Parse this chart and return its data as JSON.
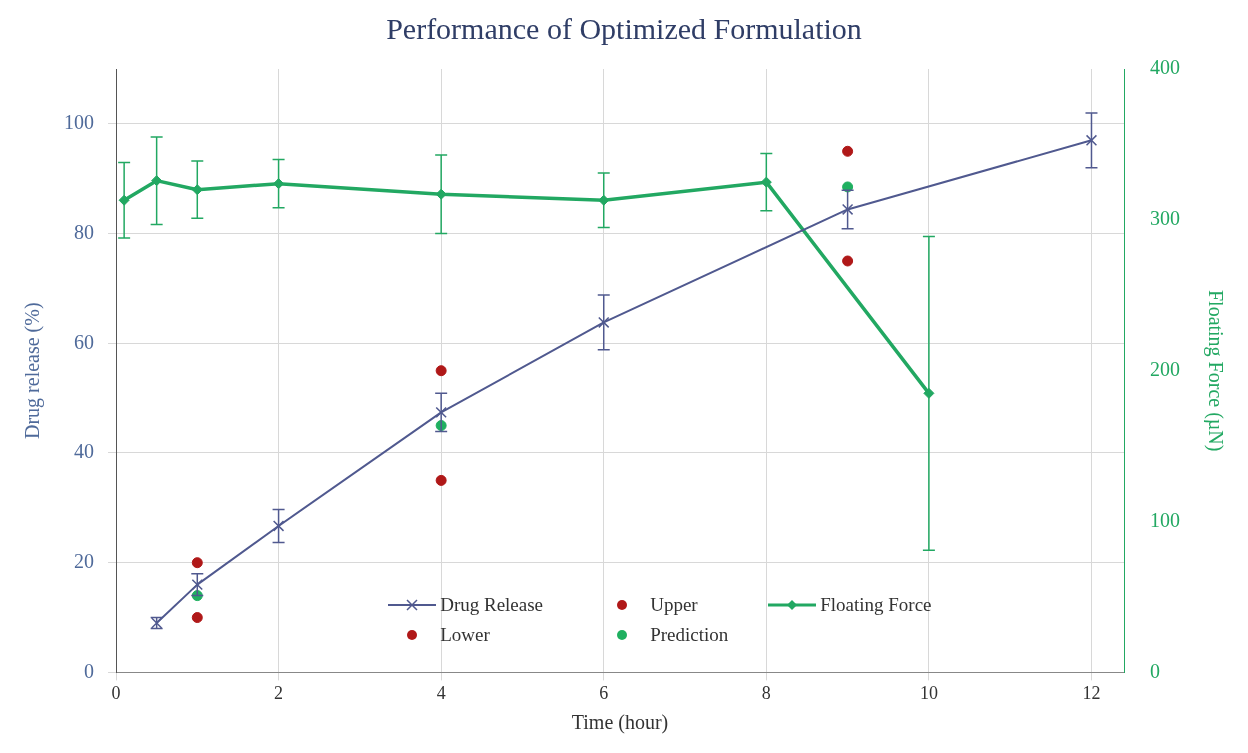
{
  "chart_data": {
    "type": "line",
    "title": "Performance of Optimized Formulation",
    "xlabel": "Time (hour)",
    "ylabel": "Drug release (%)",
    "y2label": "Floating Force (µN)",
    "xlim": [
      0,
      12.4
    ],
    "xticks": [
      0,
      2,
      4,
      6,
      8,
      10,
      12
    ],
    "ylim": [
      0,
      110
    ],
    "yticks": [
      0,
      20,
      40,
      60,
      80,
      100
    ],
    "y2lim": [
      0,
      400
    ],
    "y2ticks": [
      0,
      100,
      200,
      300,
      400
    ],
    "grid": true,
    "legend": "bottom",
    "line_style": "solid",
    "series": [
      {
        "name": "Drug Release",
        "marker": "cross",
        "color": "#50598f",
        "x": [
          0.5,
          1,
          2,
          4,
          6,
          9,
          12
        ],
        "values": [
          9,
          16,
          26.7,
          47.4,
          63.8,
          84.4,
          97
        ],
        "errors": [
          1,
          2,
          3,
          3.5,
          5,
          3.5,
          5
        ]
      },
      {
        "name": "Upper",
        "type": "scatter",
        "marker": "circle",
        "color": "#b01818",
        "x": [
          1,
          4,
          9
        ],
        "values": [
          20,
          55,
          95
        ]
      },
      {
        "name": "Floating Force",
        "marker": "diamond",
        "axis": "y2",
        "color": "#22a862",
        "x": [
          0.1,
          0.5,
          1,
          2,
          4,
          6,
          8,
          10
        ],
        "values": [
          313,
          326,
          320,
          324,
          317,
          313,
          325,
          185
        ],
        "errors": [
          25,
          29,
          19,
          16,
          26,
          18,
          19,
          104
        ]
      },
      {
        "name": "Lower",
        "type": "scatter",
        "marker": "circle",
        "color": "#b01818",
        "x": [
          1,
          4,
          9
        ],
        "values": [
          10,
          35,
          75
        ]
      },
      {
        "name": "Prediction",
        "type": "scatter",
        "marker": "circle",
        "color": "#1fb060",
        "x": [
          1,
          4,
          9
        ],
        "values": [
          14,
          45,
          88.5
        ]
      }
    ]
  }
}
